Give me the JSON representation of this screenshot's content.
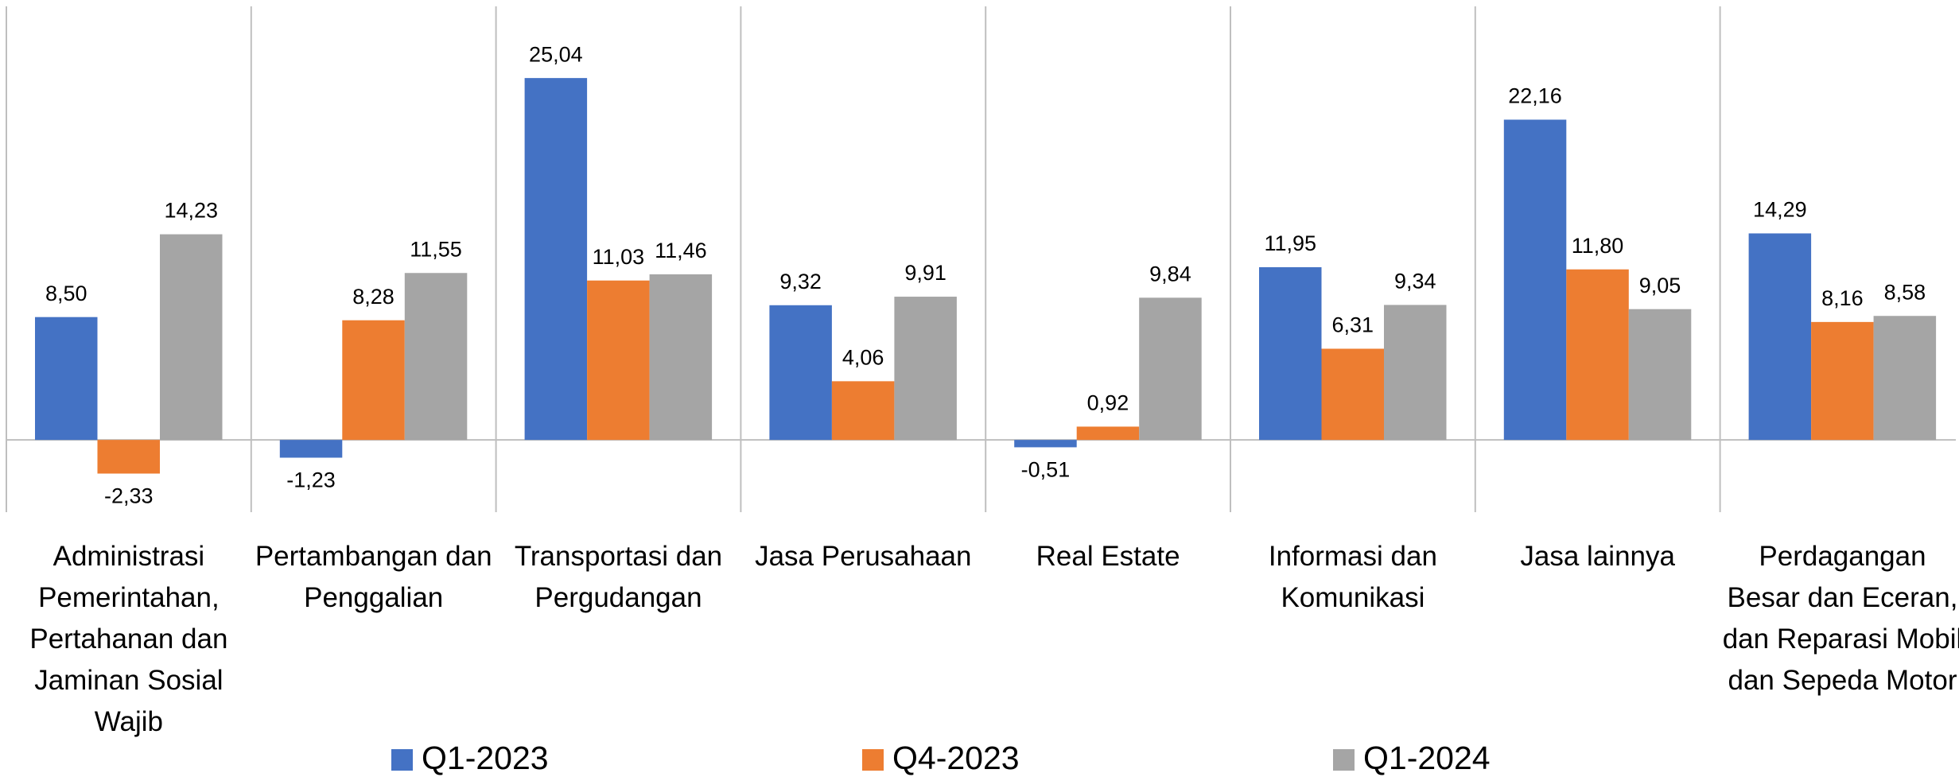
{
  "chart_data": {
    "type": "bar",
    "categories": [
      "Administrasi Pemerintahan, Pertahanan dan Jaminan Sosial Wajib",
      "Pertambangan dan Penggalian",
      "Transportasi dan Pergudangan",
      "Jasa Perusahaan",
      "Real Estate",
      "Informasi dan Komunikasi",
      "Jasa lainnya",
      "Perdagangan Besar dan Eceran, dan Reparasi Mobil dan Sepeda Motor"
    ],
    "series": [
      {
        "name": "Q1-2023",
        "color": "#4472c4",
        "values": [
          8.5,
          -1.23,
          25.04,
          9.32,
          -0.51,
          11.95,
          22.16,
          14.29
        ],
        "value_labels": [
          "8,50",
          "-1,23",
          "25,04",
          "9,32",
          "-0,51",
          "11,95",
          "22,16",
          "14,29"
        ]
      },
      {
        "name": "Q4-2023",
        "color": "#ed7d31",
        "values": [
          -2.33,
          8.28,
          11.03,
          4.06,
          0.92,
          6.31,
          11.8,
          8.16
        ],
        "value_labels": [
          "-2,33",
          "8,28",
          "11,03",
          "4,06",
          "0,92",
          "6,31",
          "11,80",
          "8,16"
        ]
      },
      {
        "name": "Q1-2024",
        "color": "#a5a5a5",
        "values": [
          14.23,
          11.55,
          11.46,
          9.91,
          9.84,
          9.34,
          9.05,
          8.58
        ],
        "value_labels": [
          "14,23",
          "11,55",
          "11,46",
          "9,91",
          "9,84",
          "9,34",
          "9,05",
          "8,58"
        ]
      }
    ],
    "ylim": [
      -5,
      30
    ],
    "legend": "bottom"
  }
}
